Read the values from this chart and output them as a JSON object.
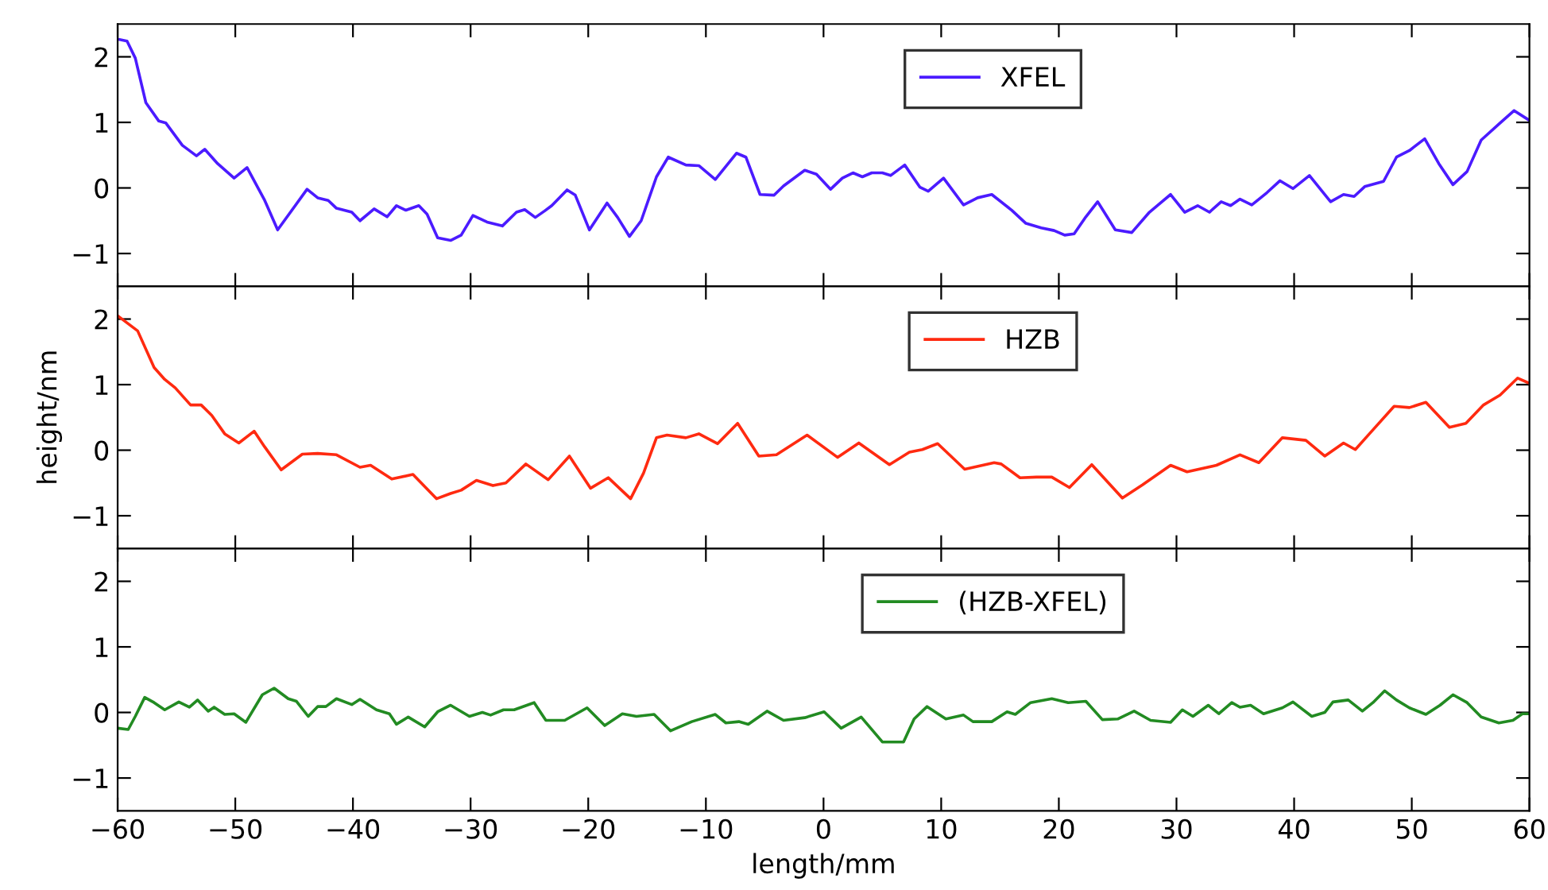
{
  "chart_data": [
    {
      "type": "line",
      "xlim": [
        -60,
        60
      ],
      "xticks": [
        -60,
        -50,
        -40,
        -30,
        -20,
        -10,
        0,
        10,
        20,
        30,
        40,
        50,
        60
      ],
      "ylim": [
        -1.5,
        2.5
      ],
      "yticks": [
        -1,
        0,
        1,
        2
      ],
      "tick_labels": "y",
      "legend": "top",
      "grid": false,
      "series": [
        {
          "name": "XFEL",
          "color": "#4b1bff",
          "x": [
            -60,
            -59.2,
            -58.5,
            -57.6,
            -56.5,
            -55.9,
            -54.5,
            -53.3,
            -52.6,
            -51.5,
            -50.1,
            -49.0,
            -47.5,
            -46.4,
            -43.9,
            -43.0,
            -42.1,
            -41.4,
            -40.1,
            -39.4,
            -38.2,
            -37.1,
            -36.3,
            -35.5,
            -34.4,
            -33.7,
            -32.8,
            -31.7,
            -30.8,
            -29.8,
            -28.6,
            -27.3,
            -26.1,
            -25.4,
            -24.5,
            -23.7,
            -23.1,
            -21.8,
            -21.1,
            -19.9,
            -18.4,
            -17.5,
            -16.5,
            -15.5,
            -14.2,
            -13.2,
            -11.7,
            -10.6,
            -9.2,
            -8.3,
            -7.4,
            -6.6,
            -5.4,
            -4.2,
            -3.4,
            -1.6,
            -0.6,
            0.6,
            1.6,
            2.5,
            3.3,
            4.1,
            5.0,
            5.7,
            6.9,
            8.2,
            8.9,
            10.2,
            11.9,
            13.1,
            14.3,
            16.0,
            17.2,
            18.5,
            19.6,
            20.5,
            21.3,
            22.3,
            23.3,
            24.8,
            26.2,
            27.7,
            29.5,
            30.7,
            31.8,
            32.8,
            33.8,
            34.6,
            35.4,
            36.4,
            37.7,
            38.8,
            39.9,
            41.3,
            43.1,
            44.2,
            45.1,
            46.0,
            47.6,
            48.7,
            49.8,
            51.1,
            52.3,
            53.5,
            54.7,
            55.9,
            57.5,
            58.7,
            60.0
          ],
          "values": [
            2.27,
            2.24,
            1.98,
            1.3,
            1.02,
            0.99,
            0.65,
            0.49,
            0.59,
            0.37,
            0.15,
            0.31,
            -0.19,
            -0.64,
            -0.02,
            -0.15,
            -0.19,
            -0.31,
            -0.37,
            -0.5,
            -0.32,
            -0.44,
            -0.27,
            -0.34,
            -0.27,
            -0.4,
            -0.76,
            -0.8,
            -0.72,
            -0.42,
            -0.52,
            -0.58,
            -0.37,
            -0.33,
            -0.45,
            -0.35,
            -0.27,
            -0.03,
            -0.11,
            -0.64,
            -0.23,
            -0.45,
            -0.74,
            -0.5,
            0.17,
            0.47,
            0.35,
            0.34,
            0.13,
            0.33,
            0.53,
            0.47,
            -0.1,
            -0.11,
            0.03,
            0.27,
            0.21,
            -0.02,
            0.15,
            0.23,
            0.17,
            0.23,
            0.23,
            0.19,
            0.35,
            0.01,
            -0.05,
            0.15,
            -0.26,
            -0.15,
            -0.1,
            -0.34,
            -0.54,
            -0.61,
            -0.65,
            -0.72,
            -0.7,
            -0.44,
            -0.21,
            -0.64,
            -0.68,
            -0.37,
            -0.1,
            -0.37,
            -0.27,
            -0.37,
            -0.21,
            -0.27,
            -0.17,
            -0.26,
            -0.07,
            0.11,
            -0.01,
            0.19,
            -0.21,
            -0.1,
            -0.13,
            0.02,
            0.1,
            0.47,
            0.57,
            0.75,
            0.37,
            0.05,
            0.25,
            0.73,
            0.99,
            1.18,
            1.03
          ]
        }
      ]
    },
    {
      "type": "line",
      "xlim": [
        -60,
        60
      ],
      "xticks": [
        -60,
        -50,
        -40,
        -30,
        -20,
        -10,
        0,
        10,
        20,
        30,
        40,
        50,
        60
      ],
      "ylim": [
        -1.5,
        2.5
      ],
      "yticks": [
        -1,
        0,
        1,
        2
      ],
      "tick_labels": "y",
      "legend": "top",
      "grid": false,
      "ylabel": "height/nm",
      "series": [
        {
          "name": "HZB",
          "color": "#ff2a10",
          "x": [
            -60,
            -58.3,
            -56.9,
            -56.0,
            -55.1,
            -53.8,
            -52.9,
            -52.0,
            -50.9,
            -49.7,
            -48.4,
            -47.5,
            -46.1,
            -44.3,
            -43.0,
            -41.4,
            -39.4,
            -38.5,
            -36.7,
            -34.9,
            -32.9,
            -31.7,
            -30.8,
            -29.5,
            -28.1,
            -27.0,
            -25.3,
            -23.4,
            -21.6,
            -19.8,
            -18.3,
            -16.4,
            -15.3,
            -14.2,
            -13.3,
            -11.7,
            -10.6,
            -9.0,
            -7.3,
            -5.5,
            -4.0,
            -1.4,
            1.2,
            3.0,
            5.6,
            7.3,
            8.4,
            9.7,
            12.0,
            14.5,
            15.1,
            16.7,
            18.1,
            19.4,
            20.9,
            22.8,
            25.4,
            27.1,
            29.5,
            30.9,
            33.4,
            35.4,
            37.0,
            39.0,
            41.0,
            42.6,
            44.2,
            45.2,
            46.4,
            48.5,
            49.8,
            51.2,
            53.2,
            54.6,
            56.1,
            57.5,
            59.0,
            60.0
          ],
          "values": [
            2.05,
            1.82,
            1.26,
            1.08,
            0.95,
            0.69,
            0.69,
            0.53,
            0.25,
            0.11,
            0.29,
            0.05,
            -0.3,
            -0.06,
            -0.05,
            -0.07,
            -0.26,
            -0.23,
            -0.44,
            -0.37,
            -0.74,
            -0.66,
            -0.61,
            -0.46,
            -0.54,
            -0.5,
            -0.21,
            -0.45,
            -0.09,
            -0.58,
            -0.42,
            -0.74,
            -0.35,
            0.19,
            0.23,
            0.19,
            0.25,
            0.1,
            0.41,
            -0.09,
            -0.07,
            0.23,
            -0.11,
            0.11,
            -0.22,
            -0.03,
            0.01,
            0.1,
            -0.29,
            -0.19,
            -0.21,
            -0.42,
            -0.41,
            -0.41,
            -0.57,
            -0.22,
            -0.73,
            -0.53,
            -0.23,
            -0.33,
            -0.23,
            -0.07,
            -0.19,
            0.19,
            0.15,
            -0.09,
            0.11,
            0.01,
            0.25,
            0.67,
            0.65,
            0.73,
            0.35,
            0.41,
            0.69,
            0.84,
            1.1,
            1.02
          ]
        }
      ]
    },
    {
      "type": "line",
      "xlim": [
        -60,
        60
      ],
      "xticks": [
        -60,
        -50,
        -40,
        -30,
        -20,
        -10,
        0,
        10,
        20,
        30,
        40,
        50,
        60
      ],
      "ylim": [
        -1.5,
        2.5
      ],
      "yticks": [
        -1,
        0,
        1,
        2
      ],
      "legend": "top",
      "grid": false,
      "xlabel": "length/mm",
      "series": [
        {
          "name": "(HZB-XFEL)",
          "color": "#228b22",
          "x": [
            -60,
            -59.1,
            -58.5,
            -57.7,
            -56.9,
            -56.0,
            -54.8,
            -53.9,
            -53.2,
            -52.3,
            -51.8,
            -50.9,
            -50.1,
            -49.1,
            -47.7,
            -46.7,
            -45.5,
            -44.8,
            -43.8,
            -43.0,
            -42.3,
            -41.4,
            -40.1,
            -39.4,
            -38.0,
            -36.9,
            -36.3,
            -35.3,
            -33.9,
            -32.8,
            -31.7,
            -30.1,
            -29.0,
            -28.3,
            -27.2,
            -26.3,
            -24.6,
            -23.6,
            -22.0,
            -20.1,
            -18.6,
            -17.1,
            -15.9,
            -14.4,
            -13.0,
            -11.2,
            -9.2,
            -8.3,
            -7.2,
            -6.4,
            -4.8,
            -3.4,
            -1.6,
            0.05,
            1.5,
            3.2,
            5.0,
            6.8,
            7.7,
            8.8,
            10.4,
            11.9,
            12.7,
            14.3,
            15.6,
            16.3,
            17.6,
            19.4,
            20.8,
            22.3,
            23.7,
            25.0,
            26.4,
            27.8,
            29.5,
            30.5,
            31.4,
            32.7,
            33.6,
            34.7,
            35.4,
            36.3,
            37.4,
            39.0,
            39.9,
            41.5,
            42.6,
            43.3,
            44.6,
            45.8,
            46.7,
            47.7,
            48.7,
            49.8,
            51.2,
            52.4,
            53.5,
            54.7,
            55.9,
            57.4,
            58.6,
            59.4,
            60.0
          ],
          "values": [
            -0.24,
            -0.26,
            -0.06,
            0.23,
            0.15,
            0.04,
            0.16,
            0.08,
            0.19,
            0.02,
            0.08,
            -0.03,
            -0.02,
            -0.15,
            0.27,
            0.37,
            0.21,
            0.17,
            -0.06,
            0.09,
            0.09,
            0.21,
            0.12,
            0.2,
            0.04,
            -0.02,
            -0.18,
            -0.07,
            -0.22,
            0.01,
            0.11,
            -0.06,
            0.0,
            -0.04,
            0.04,
            0.04,
            0.15,
            -0.12,
            -0.12,
            0.07,
            -0.2,
            -0.02,
            -0.06,
            -0.03,
            -0.28,
            -0.14,
            -0.03,
            -0.16,
            -0.14,
            -0.18,
            0.02,
            -0.12,
            -0.08,
            0.01,
            -0.24,
            -0.07,
            -0.45,
            -0.45,
            -0.1,
            0.09,
            -0.1,
            -0.04,
            -0.14,
            -0.14,
            0.01,
            -0.03,
            0.15,
            0.21,
            0.15,
            0.17,
            -0.11,
            -0.1,
            0.02,
            -0.12,
            -0.15,
            0.04,
            -0.06,
            0.11,
            -0.02,
            0.15,
            0.08,
            0.11,
            -0.02,
            0.07,
            0.16,
            -0.06,
            0.0,
            0.16,
            0.19,
            0.02,
            0.15,
            0.33,
            0.19,
            0.07,
            -0.03,
            0.11,
            0.27,
            0.15,
            -0.07,
            -0.16,
            -0.12,
            -0.02,
            -0.02
          ]
        }
      ]
    }
  ]
}
